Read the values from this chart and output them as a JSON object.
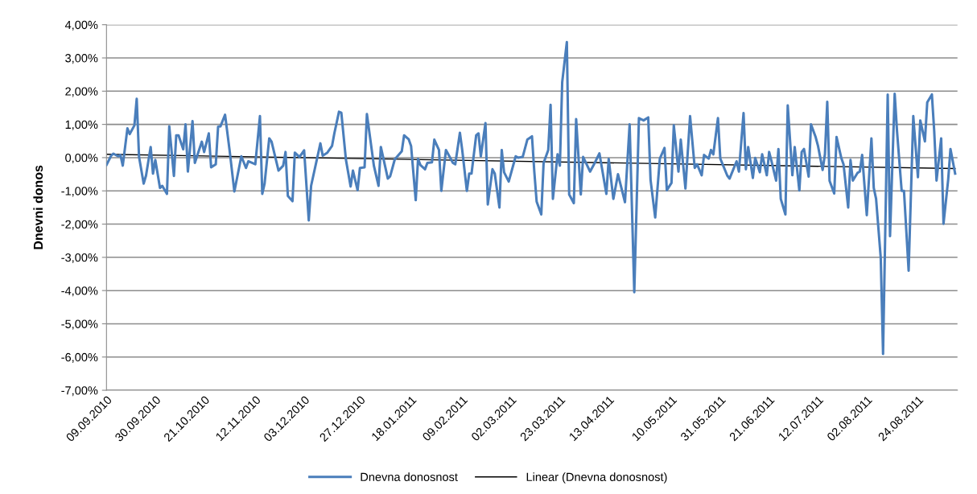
{
  "chart_data": {
    "type": "line",
    "ylabel": "Dnevni donos",
    "ylim": [
      -7,
      4
    ],
    "yticks": [
      {
        "value": 4,
        "label": "4,00%"
      },
      {
        "value": 3,
        "label": "3,00%"
      },
      {
        "value": 2,
        "label": "2,00%"
      },
      {
        "value": 1,
        "label": "1,00%"
      },
      {
        "value": 0,
        "label": "0,00%"
      },
      {
        "value": -1,
        "label": "-1,00%"
      },
      {
        "value": -2,
        "label": "-2,00%"
      },
      {
        "value": -3,
        "label": "-3,00%"
      },
      {
        "value": -4,
        "label": "-4,00%"
      },
      {
        "value": -5,
        "label": "-5,00%"
      },
      {
        "value": -6,
        "label": "-6,00%"
      },
      {
        "value": -7,
        "label": "-7,00%"
      }
    ],
    "xlim": [
      "2010-09-09",
      "2011-09-10"
    ],
    "xticks": [
      {
        "value": "2010-09-09",
        "label": "09.09.2010"
      },
      {
        "value": "2010-09-30",
        "label": "30.09.2010"
      },
      {
        "value": "2010-10-21",
        "label": "21.10.2010"
      },
      {
        "value": "2010-11-12",
        "label": "12.11.2010"
      },
      {
        "value": "2010-12-03",
        "label": "03.12.2010"
      },
      {
        "value": "2010-12-27",
        "label": "27.12.2010"
      },
      {
        "value": "2011-01-18",
        "label": "18.01.2011"
      },
      {
        "value": "2011-02-09",
        "label": "09.02.2011"
      },
      {
        "value": "2011-03-02",
        "label": "02.03.2011"
      },
      {
        "value": "2011-03-23",
        "label": "23.03.2011"
      },
      {
        "value": "2011-04-13",
        "label": "13.04.2011"
      },
      {
        "value": "2011-05-10",
        "label": "10.05.2011"
      },
      {
        "value": "2011-05-31",
        "label": "31.05.2011"
      },
      {
        "value": "2011-06-21",
        "label": "21.06.2011"
      },
      {
        "value": "2011-07-12",
        "label": "12.07.2011"
      },
      {
        "value": "2011-08-02",
        "label": "02.08.2011"
      },
      {
        "value": "2011-08-24",
        "label": "24.08.2011"
      }
    ],
    "grid": "y",
    "legend": "bottom",
    "marker": "none",
    "line_style": "solid",
    "series": [
      {
        "name": "Dnevna donosnost",
        "color": "#4a7ebb",
        "x": [
          "2010-09-09",
          "2010-09-11",
          "2010-09-12",
          "2010-09-14",
          "2010-09-15",
          "2010-09-16",
          "2010-09-18",
          "2010-09-19",
          "2010-09-21",
          "2010-09-22",
          "2010-09-23",
          "2010-09-25",
          "2010-09-26",
          "2010-09-28",
          "2010-09-29",
          "2010-09-30",
          "2010-10-02",
          "2010-10-03",
          "2010-10-05",
          "2010-10-06",
          "2010-10-08",
          "2010-10-09",
          "2010-10-10",
          "2010-10-12",
          "2010-10-13",
          "2010-10-14",
          "2010-10-16",
          "2010-10-17",
          "2010-10-20",
          "2010-10-21",
          "2010-10-23",
          "2010-10-24",
          "2010-10-26",
          "2010-10-27",
          "2010-10-28",
          "2010-10-30",
          "2010-11-01",
          "2010-11-03",
          "2010-11-06",
          "2010-11-08",
          "2010-11-09",
          "2010-11-12",
          "2010-11-14",
          "2010-11-15",
          "2010-11-16",
          "2010-11-18",
          "2010-11-19",
          "2010-11-22",
          "2010-11-24",
          "2010-11-25",
          "2010-11-26",
          "2010-11-28",
          "2010-11-29",
          "2010-12-01",
          "2010-12-03",
          "2010-12-05",
          "2010-12-06",
          "2010-12-10",
          "2010-12-11",
          "2010-12-13",
          "2010-12-15",
          "2010-12-16",
          "2010-12-18",
          "2010-12-19",
          "2010-12-21",
          "2010-12-23",
          "2010-12-24",
          "2010-12-26",
          "2010-12-27",
          "2010-12-29",
          "2010-12-30",
          "2011-01-02",
          "2011-01-04",
          "2011-01-05",
          "2011-01-08",
          "2011-01-09",
          "2011-01-11",
          "2011-01-14",
          "2011-01-15",
          "2011-01-17",
          "2011-01-18",
          "2011-01-20",
          "2011-01-21",
          "2011-01-22",
          "2011-01-24",
          "2011-01-25",
          "2011-01-27",
          "2011-01-28",
          "2011-01-30",
          "2011-01-31",
          "2011-02-02",
          "2011-02-03",
          "2011-02-05",
          "2011-02-06",
          "2011-02-08",
          "2011-02-09",
          "2011-02-11",
          "2011-02-12",
          "2011-02-13",
          "2011-02-15",
          "2011-02-16",
          "2011-02-17",
          "2011-02-19",
          "2011-02-20",
          "2011-02-22",
          "2011-02-23",
          "2011-02-25",
          "2011-02-26",
          "2011-02-27",
          "2011-03-01",
          "2011-03-04",
          "2011-03-05",
          "2011-03-07",
          "2011-03-09",
          "2011-03-11",
          "2011-03-12",
          "2011-03-13",
          "2011-03-15",
          "2011-03-16",
          "2011-03-18",
          "2011-03-19",
          "2011-03-20",
          "2011-03-22",
          "2011-03-23",
          "2011-03-24",
          "2011-03-26",
          "2011-03-27",
          "2011-03-29",
          "2011-03-30",
          "2011-04-01",
          "2011-04-02",
          "2011-04-05",
          "2011-04-07",
          "2011-04-09",
          "2011-04-12",
          "2011-04-13",
          "2011-04-15",
          "2011-04-17",
          "2011-04-20",
          "2011-04-22",
          "2011-04-24",
          "2011-04-26",
          "2011-04-28",
          "2011-04-30",
          "2011-05-01",
          "2011-05-03",
          "2011-05-05",
          "2011-05-07",
          "2011-05-08",
          "2011-05-10",
          "2011-05-11",
          "2011-05-13",
          "2011-05-14",
          "2011-05-16",
          "2011-05-18",
          "2011-05-20",
          "2011-05-21",
          "2011-05-23",
          "2011-05-24",
          "2011-05-26",
          "2011-05-27",
          "2011-05-28",
          "2011-05-30",
          "2011-05-31",
          "2011-06-03",
          "2011-06-04",
          "2011-06-07",
          "2011-06-08",
          "2011-06-10",
          "2011-06-11",
          "2011-06-12",
          "2011-06-14",
          "2011-06-15",
          "2011-06-17",
          "2011-06-18",
          "2011-06-20",
          "2011-06-21",
          "2011-06-22",
          "2011-06-24",
          "2011-06-25",
          "2011-06-26",
          "2011-06-28",
          "2011-06-29",
          "2011-07-01",
          "2011-07-02",
          "2011-07-04",
          "2011-07-05",
          "2011-07-06",
          "2011-07-08",
          "2011-07-09",
          "2011-07-11",
          "2011-07-12",
          "2011-07-14",
          "2011-07-15",
          "2011-07-16",
          "2011-07-17",
          "2011-07-19",
          "2011-07-20",
          "2011-07-22",
          "2011-07-23",
          "2011-07-25",
          "2011-07-26",
          "2011-07-27",
          "2011-07-29",
          "2011-07-30",
          "2011-07-31",
          "2011-08-02",
          "2011-08-04",
          "2011-08-05",
          "2011-08-06",
          "2011-08-08",
          "2011-08-09",
          "2011-08-11",
          "2011-08-12",
          "2011-08-14",
          "2011-08-15",
          "2011-08-17",
          "2011-08-18",
          "2011-08-20",
          "2011-08-22",
          "2011-08-24",
          "2011-08-25",
          "2011-08-27",
          "2011-08-28",
          "2011-08-30",
          "2011-08-31",
          "2011-09-01",
          "2011-09-03",
          "2011-09-04",
          "2011-09-06",
          "2011-09-07",
          "2011-09-09"
        ],
        "values": [
          -0.22,
          0.06,
          0.12,
          0.04,
          0.08,
          -0.24,
          0.88,
          0.71,
          0.97,
          1.77,
          0.02,
          -0.78,
          -0.54,
          0.32,
          -0.48,
          -0.07,
          -0.91,
          -0.85,
          -1.09,
          0.94,
          -0.55,
          0.67,
          0.67,
          0.25,
          1.0,
          -0.42,
          1.1,
          -0.16,
          0.48,
          0.17,
          0.73,
          -0.29,
          -0.2,
          0.93,
          0.94,
          1.29,
          0.19,
          -1.02,
          0.04,
          -0.31,
          -0.11,
          -0.2,
          1.25,
          -1.09,
          -0.78,
          0.58,
          0.48,
          -0.39,
          -0.24,
          0.17,
          -1.15,
          -1.31,
          0.15,
          0.02,
          0.22,
          -1.89,
          -0.85,
          0.43,
          0.06,
          0.15,
          0.35,
          0.73,
          1.38,
          1.35,
          -0.07,
          -0.87,
          -0.39,
          -0.98,
          -0.31,
          -0.29,
          1.31,
          -0.24,
          -0.85,
          0.32,
          -0.63,
          -0.56,
          -0.05,
          0.19,
          0.67,
          0.55,
          0.35,
          -1.28,
          -0.04,
          -0.22,
          -0.35,
          -0.16,
          -0.14,
          0.54,
          0.23,
          -1.0,
          0.23,
          0.1,
          -0.16,
          -0.2,
          0.75,
          0.23,
          -1.0,
          -0.48,
          -0.48,
          0.67,
          0.73,
          0.04,
          1.04,
          -1.41,
          -0.35,
          -0.48,
          -1.5,
          0.23,
          -0.44,
          -0.72,
          0.04,
          0.0,
          0.02,
          0.54,
          0.64,
          -0.42,
          -1.32,
          -1.71,
          -0.16,
          0.23,
          1.59,
          -1.24,
          0.1,
          -0.24,
          2.27,
          3.48,
          -1.11,
          -1.37,
          1.16,
          -1.11,
          0.02,
          -0.42,
          -0.16,
          0.13,
          -1.09,
          -0.04,
          -1.24,
          -0.5,
          -1.34,
          1.0,
          -4.05,
          1.19,
          1.12,
          1.21,
          -0.67,
          -1.8,
          -0.03,
          0.29,
          -0.98,
          -0.76,
          0.97,
          -0.42,
          0.54,
          -0.93,
          1.25,
          -0.31,
          -0.2,
          -0.53,
          0.08,
          -0.03,
          0.23,
          0.1,
          1.19,
          -0.03,
          -0.54,
          -0.63,
          -0.11,
          -0.42,
          1.34,
          -0.35,
          0.32,
          -0.61,
          -0.01,
          -0.44,
          0.1,
          -0.53,
          0.17,
          -0.1,
          -0.69,
          0.26,
          -1.24,
          -1.71,
          1.57,
          -0.53,
          0.32,
          -0.99,
          0.17,
          0.26,
          -0.57,
          1.0,
          0.62,
          0.36,
          -0.37,
          0.1,
          1.68,
          -0.7,
          -1.08,
          0.62,
          0.0,
          -0.2,
          -1.5,
          -0.07,
          -0.69,
          -0.46,
          -0.42,
          0.08,
          -1.73,
          0.58,
          -0.91,
          -1.24,
          -3.01,
          -5.91,
          1.9,
          -2.36,
          1.92,
          0.8,
          -1.0,
          -1.0,
          -3.4,
          1.25,
          -0.59,
          1.12,
          0.49,
          1.66,
          1.9,
          0.8,
          -0.69,
          0.58,
          -1.99,
          -0.67,
          0.26,
          -0.48
        ]
      },
      {
        "name": "Linear (Dnevna donosnost)",
        "color": "#000000",
        "x": [
          "2010-09-09",
          "2011-09-09"
        ],
        "values": [
          0.1,
          -0.33
        ]
      }
    ]
  }
}
